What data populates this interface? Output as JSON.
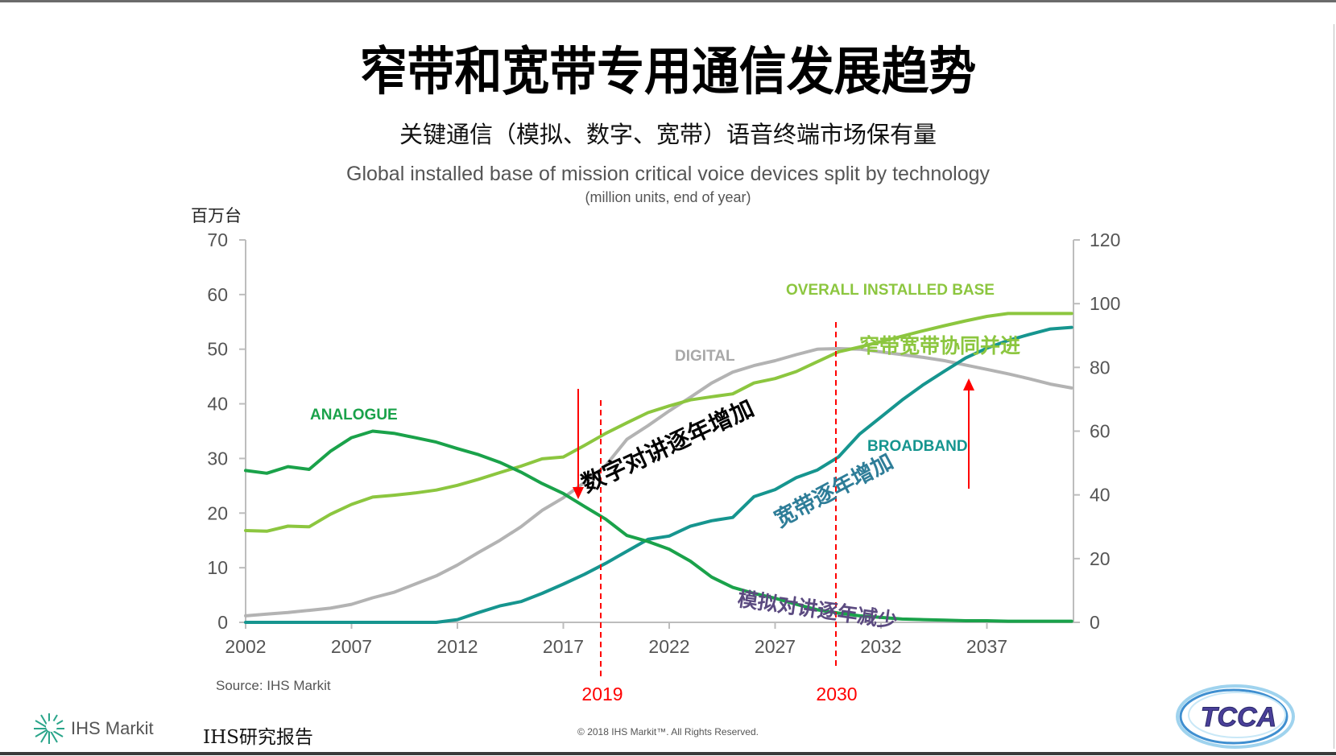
{
  "slide": {
    "title": "窄带和宽带专用通信发展趋势",
    "subtitle_cn": "关键通信（模拟、数字、宽带）语音终端市场保有量",
    "unit_label": "百万台",
    "source": "Source: IHS Markit",
    "copyright": "© 2018 IHS Markit™. All Rights Reserved.",
    "ihs_logo_text": "IHS Markit",
    "ihs_report": "IHS研究报告",
    "tcca_logo_text": "TCCA"
  },
  "annotations": {
    "digital_increase": "数字对讲逐年增加",
    "broadband_increase": "宽带逐年增加",
    "analogue_decrease": "模拟对讲逐年减少",
    "coexist": "窄带宽带协同并进",
    "marker_2019": "2019",
    "marker_2030": "2030"
  },
  "colors": {
    "analogue": "#1aa24a",
    "overall": "#8cc63f",
    "digital": "#b3b3b3",
    "broadband": "#16958f",
    "arrow": "#ff0000",
    "axis": "#bdbdbd",
    "tick_text": "#555555",
    "broadband_note": "#2e7d98",
    "analogue_note": "#5b4a80"
  },
  "chart_data": {
    "type": "line",
    "title": "Global installed base of mission critical voice devices split by technology",
    "subtitle": "(million units, end of year)",
    "xlabel": "",
    "ylabel": "百万台",
    "xlim": [
      2002,
      2041
    ],
    "ylim": [
      0,
      70
    ],
    "y2lim": [
      0,
      120
    ],
    "x_ticks": [
      "2002",
      "2007",
      "2012",
      "2017",
      "2022",
      "2027",
      "2032",
      "2037"
    ],
    "y_ticks": [
      "0",
      "10",
      "20",
      "30",
      "40",
      "50",
      "60",
      "70"
    ],
    "y2_ticks": [
      "0",
      "20",
      "40",
      "60",
      "80",
      "100",
      "120"
    ],
    "grid": false,
    "legend": "inline-labels",
    "x": [
      2002,
      2003,
      2004,
      2005,
      2006,
      2007,
      2008,
      2009,
      2010,
      2011,
      2012,
      2013,
      2014,
      2015,
      2016,
      2017,
      2018,
      2019,
      2020,
      2021,
      2022,
      2023,
      2024,
      2025,
      2026,
      2027,
      2028,
      2029,
      2030,
      2031,
      2032,
      2033,
      2034,
      2035,
      2036,
      2037,
      2038,
      2039,
      2040,
      2041
    ],
    "series": [
      {
        "name": "ANALOGUE",
        "axis": "left",
        "values": [
          27.8,
          27.3,
          28.5,
          28.0,
          31.3,
          33.8,
          35.0,
          34.6,
          33.8,
          33.0,
          31.8,
          30.7,
          29.3,
          27.5,
          25.4,
          23.6,
          21.2,
          18.9,
          15.9,
          14.8,
          13.4,
          11.2,
          8.3,
          6.4,
          5.3,
          4.4,
          3.3,
          2.3,
          1.7,
          1.2,
          0.9,
          0.6,
          0.5,
          0.4,
          0.3,
          0.3,
          0.2,
          0.2,
          0.2,
          0.2
        ]
      },
      {
        "name": "DIGITAL",
        "axis": "left",
        "values": [
          1.2,
          1.5,
          1.8,
          2.2,
          2.6,
          3.3,
          4.5,
          5.5,
          7.0,
          8.5,
          10.5,
          12.8,
          15.0,
          17.5,
          20.5,
          22.8,
          25.6,
          28.7,
          33.5,
          36.0,
          38.7,
          41.2,
          43.8,
          45.8,
          47.0,
          47.9,
          49.0,
          50.0,
          50.1,
          50.0,
          49.5,
          49.0,
          48.5,
          47.9,
          47.1,
          46.3,
          45.5,
          44.6,
          43.6,
          42.9
        ]
      },
      {
        "name": "BROADBAND",
        "axis": "left",
        "values": [
          0,
          0,
          0,
          0,
          0,
          0,
          0,
          0,
          0,
          0,
          0.5,
          1.8,
          3.0,
          3.8,
          5.3,
          7.0,
          8.8,
          10.8,
          13.0,
          15.2,
          15.8,
          17.6,
          18.6,
          19.2,
          23.0,
          24.3,
          26.5,
          27.9,
          30.3,
          34.5,
          37.6,
          40.7,
          43.5,
          46.0,
          48.4,
          50.2,
          51.6,
          52.7,
          53.7,
          54.0
        ]
      },
      {
        "name": "OVERALL INSTALLED BASE",
        "axis": "right",
        "values": [
          28.8,
          28.6,
          30.2,
          30.0,
          33.9,
          37.0,
          39.3,
          39.9,
          40.6,
          41.5,
          43.0,
          44.9,
          47.0,
          49.0,
          51.3,
          51.9,
          55.5,
          59.3,
          62.6,
          65.8,
          67.9,
          69.8,
          70.8,
          71.7,
          75.1,
          76.5,
          78.7,
          81.8,
          84.9,
          86.4,
          88.1,
          89.8,
          91.5,
          93.1,
          94.6,
          96.0,
          96.9,
          96.9,
          96.9,
          96.9
        ]
      }
    ]
  }
}
